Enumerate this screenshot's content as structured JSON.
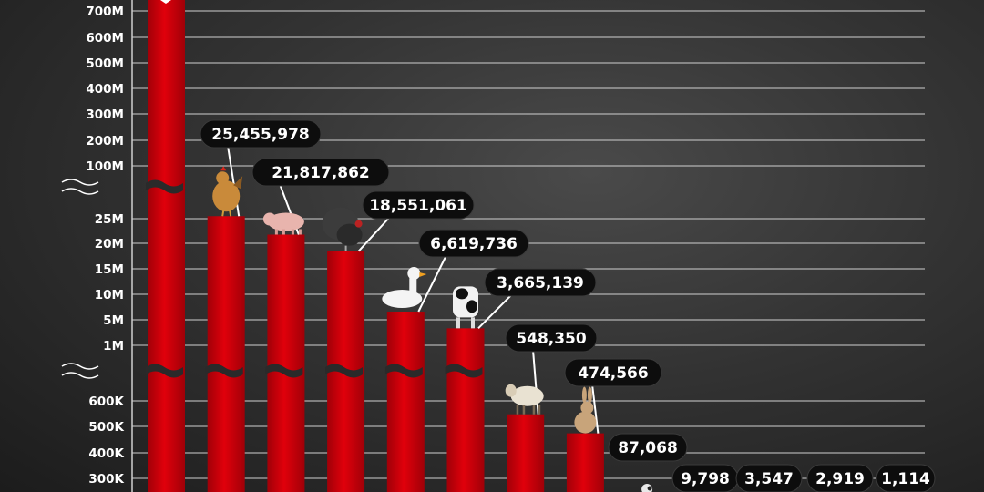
{
  "colors": {
    "bar": "#e0000b",
    "bar_dark": "#a00008",
    "pill": "#0d0d0d",
    "grid": "#cfcfcf",
    "text": "#ffffff"
  },
  "chart_data": {
    "type": "bar",
    "title": "",
    "xlabel": "",
    "ylabel": "",
    "grid": true,
    "axis": "broken",
    "y_ticks": [
      "700M",
      "600M",
      "500M",
      "400M",
      "300M",
      "200M",
      "100M",
      "25M",
      "20M",
      "15M",
      "10M",
      "5M",
      "1M",
      "600K",
      "500K",
      "400K",
      "300K"
    ],
    "categories": [
      "",
      "chicken",
      "pig",
      "turkey",
      "duck",
      "cow",
      "sheep",
      "rabbit",
      "",
      "",
      "",
      "",
      ""
    ],
    "values": [
      null,
      25455978,
      21817862,
      18551061,
      6619736,
      3665139,
      548350,
      474566,
      87068,
      9798,
      3547,
      2919,
      1114
    ],
    "value_labels": [
      "",
      "25,455,978",
      "21,817,862",
      "18,551,061",
      "6,619,736",
      "3,665,139",
      "548,350",
      "474,566",
      "87,068",
      "9,798",
      "3,547",
      "2,919",
      "1,114"
    ]
  }
}
